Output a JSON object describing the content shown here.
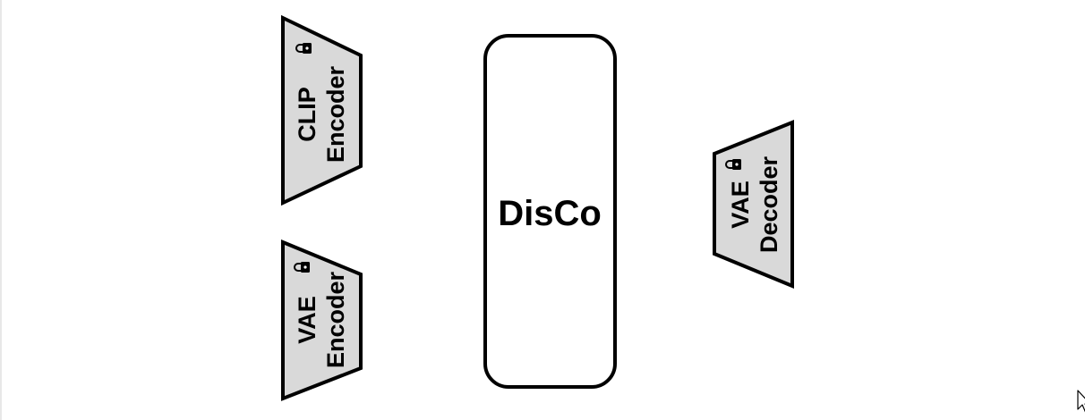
{
  "diagram": {
    "blocks": [
      {
        "id": "clip-encoder",
        "line1": "CLIP",
        "line2": "Encoder",
        "frozen": true,
        "lock_icon": "lock-icon"
      },
      {
        "id": "vae-encoder",
        "line1": "VAE",
        "line2": "Encoder",
        "frozen": true,
        "lock_icon": "lock-icon"
      },
      {
        "id": "disco",
        "label": "DisCo"
      },
      {
        "id": "vae-decoder",
        "line1": "VAE",
        "line2": "Decoder",
        "frozen": true,
        "lock_icon": "lock-icon"
      }
    ],
    "colors": {
      "module_fill": "#d9d9d9",
      "stroke": "#000000",
      "disco_fill": "#ffffff",
      "background": "#ffffff"
    },
    "cursor_icon": "mouse-pointer-icon"
  }
}
